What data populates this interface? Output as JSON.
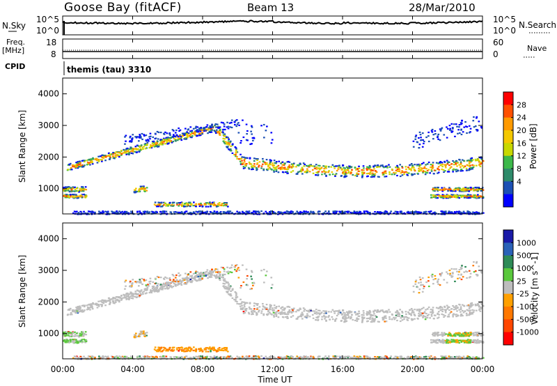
{
  "header": {
    "station": "Goose Bay (fitACF)",
    "beam": "Beam 13",
    "date": "28/Mar/2010"
  },
  "top_panels": {
    "nsky_label": "N.Sky",
    "nsky_ticks": [
      "10^5",
      "10^0"
    ],
    "nsearch_label": "N.Search",
    "nsearch_ticks": [
      "10^5",
      "10^0"
    ],
    "freq_label": "Freq.",
    "freq_unit": "[MHz]",
    "freq_ticks": [
      "18",
      "8"
    ],
    "nave_label": "Nave",
    "nave_ticks": [
      "60",
      "0"
    ],
    "cpid_label": "CPID",
    "cpid_value": "themis (tau) 3310"
  },
  "chart_data": [
    {
      "type": "heatmap",
      "ylabel": "Slant Range [km]",
      "ylim": [
        200,
        4500
      ],
      "y_ticks": [
        1000,
        2000,
        3000,
        4000
      ],
      "xlim_hours": [
        0,
        24
      ],
      "x_tick_labels": [
        "00:00",
        "04:00",
        "08:00",
        "12:00",
        "16:00",
        "20:00",
        "00:00"
      ],
      "colorbar": {
        "label": "Power [dB]",
        "ticks": [
          "28",
          "24",
          "20",
          "16",
          "12",
          "8",
          "4"
        ],
        "colors": [
          "#ff0000",
          "#ff5000",
          "#ff9a00",
          "#f4c800",
          "#c8d800",
          "#3cb84a",
          "#2e8b6a",
          "#1c50b4",
          "#0000ff"
        ]
      }
    },
    {
      "type": "heatmap",
      "ylabel": "Slant Range [km]",
      "ylim": [
        200,
        4500
      ],
      "y_ticks": [
        1000,
        2000,
        3000,
        4000
      ],
      "xlabel": "Time UT",
      "xlim_hours": [
        0,
        24
      ],
      "x_tick_labels": [
        "00:00",
        "04:00",
        "08:00",
        "12:00",
        "16:00",
        "20:00",
        "00:00"
      ],
      "colorbar": {
        "label": "Velocity [m s^-1]",
        "ticks": [
          "1000",
          "500",
          "100",
          "25",
          "-25",
          "-100",
          "-500",
          "-1000"
        ],
        "colors": [
          "#1a1aa8",
          "#2a62b8",
          "#2e8b57",
          "#5ac83c",
          "#bdbdbd",
          "#ffa000",
          "#ff7800",
          "#ff4600",
          "#ff0000"
        ]
      }
    }
  ]
}
